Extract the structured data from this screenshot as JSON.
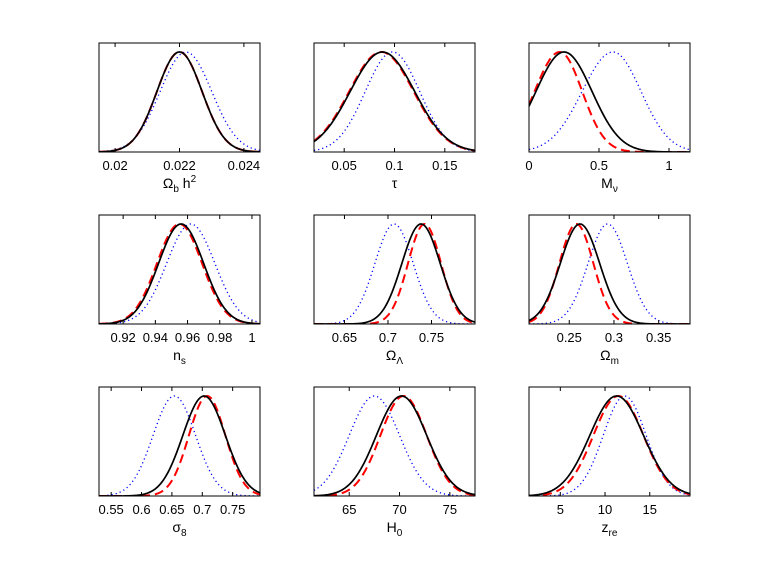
{
  "chart_data": [
    {
      "type": "line",
      "xlabel": {
        "main": "Ω",
        "sub": "b",
        "tail": " h",
        "sup": "2"
      },
      "xlim": [
        0.0195,
        0.0245
      ],
      "ticks": [
        0.02,
        0.022,
        0.024
      ],
      "tick_labels": [
        "0.02",
        "0.022",
        "0.024"
      ],
      "series": [
        {
          "style": "solid-black",
          "peak": 0.022,
          "sigma": 0.0007
        },
        {
          "style": "dashed-red",
          "peak": 0.022,
          "sigma": 0.0007
        },
        {
          "style": "dotted-blue",
          "peak": 0.0222,
          "sigma": 0.0008
        }
      ]
    },
    {
      "type": "line",
      "xlabel": {
        "main": "τ"
      },
      "xlim": [
        0.02,
        0.18
      ],
      "ticks": [
        0.05,
        0.1,
        0.15
      ],
      "tick_labels": [
        "0.05",
        "0.1",
        "0.15"
      ],
      "series": [
        {
          "style": "solid-black",
          "peak": 0.088,
          "sigma": 0.032
        },
        {
          "style": "dashed-red",
          "peak": 0.087,
          "sigma": 0.032
        },
        {
          "style": "dotted-blue",
          "peak": 0.098,
          "sigma": 0.027
        }
      ]
    },
    {
      "type": "line",
      "xlabel": {
        "main": "M",
        "sub": "ν"
      },
      "xlim": [
        0,
        1.15
      ],
      "ticks": [
        0,
        0.5,
        1
      ],
      "tick_labels": [
        "0",
        "0.5",
        "1"
      ],
      "series": [
        {
          "style": "solid-black",
          "peak": 0.25,
          "sigma_left": 0.2,
          "sigma_right": 0.2
        },
        {
          "style": "dashed-red",
          "peak": 0.22,
          "sigma_left": 0.18,
          "sigma_right": 0.16
        },
        {
          "style": "dotted-blue",
          "peak": 0.6,
          "sigma_left": 0.22,
          "sigma_right": 0.2
        }
      ]
    },
    {
      "type": "line",
      "xlabel": {
        "main": "n",
        "sub": "s"
      },
      "xlim": [
        0.905,
        1.005
      ],
      "ticks": [
        0.92,
        0.94,
        0.96,
        0.98,
        1
      ],
      "tick_labels": [
        "0.92",
        "0.94",
        "0.96",
        "0.98",
        "1"
      ],
      "series": [
        {
          "style": "solid-black",
          "peak": 0.956,
          "sigma": 0.014
        },
        {
          "style": "dashed-red",
          "peak": 0.955,
          "sigma": 0.014
        },
        {
          "style": "dotted-blue",
          "peak": 0.962,
          "sigma": 0.015
        }
      ]
    },
    {
      "type": "line",
      "xlabel": {
        "main": "Ω",
        "sub": "Λ"
      },
      "xlim": [
        0.615,
        0.8
      ],
      "ticks": [
        0.65,
        0.7,
        0.75
      ],
      "tick_labels": [
        "0.65",
        "0.7",
        "0.75"
      ],
      "series": [
        {
          "style": "solid-black",
          "peak": 0.738,
          "sigma": 0.022
        },
        {
          "style": "dashed-red",
          "peak": 0.742,
          "sigma": 0.019
        },
        {
          "style": "dotted-blue",
          "peak": 0.707,
          "sigma": 0.022
        }
      ]
    },
    {
      "type": "line",
      "xlabel": {
        "main": "Ω",
        "sub": "m"
      },
      "xlim": [
        0.205,
        0.385
      ],
      "ticks": [
        0.25,
        0.3,
        0.35
      ],
      "tick_labels": [
        "0.25",
        "0.3",
        "0.35"
      ],
      "series": [
        {
          "style": "solid-black",
          "peak": 0.262,
          "sigma": 0.022
        },
        {
          "style": "dashed-red",
          "peak": 0.258,
          "sigma": 0.019
        },
        {
          "style": "dotted-blue",
          "peak": 0.293,
          "sigma": 0.022
        }
      ]
    },
    {
      "type": "line",
      "xlabel": {
        "main": "σ",
        "sub": "8"
      },
      "xlim": [
        0.53,
        0.795
      ],
      "ticks": [
        0.55,
        0.6,
        0.65,
        0.7,
        0.75
      ],
      "tick_labels": [
        "0.55",
        "0.6",
        "0.65",
        "0.7",
        "0.75"
      ],
      "series": [
        {
          "style": "solid-black",
          "peak": 0.703,
          "sigma": 0.035
        },
        {
          "style": "dashed-red",
          "peak": 0.708,
          "sigma": 0.03
        },
        {
          "style": "dotted-blue",
          "peak": 0.654,
          "sigma": 0.035
        }
      ]
    },
    {
      "type": "line",
      "xlabel": {
        "main": "H",
        "sub": "0"
      },
      "xlim": [
        61.5,
        77.5
      ],
      "ticks": [
        65,
        70,
        75
      ],
      "tick_labels": [
        "65",
        "70",
        "75"
      ],
      "series": [
        {
          "style": "solid-black",
          "peak": 70.2,
          "sigma": 2.5
        },
        {
          "style": "dashed-red",
          "peak": 70.4,
          "sigma": 2.3
        },
        {
          "style": "dotted-blue",
          "peak": 67.5,
          "sigma": 2.5
        }
      ]
    },
    {
      "type": "line",
      "xlabel": {
        "main": "z",
        "sub": "re"
      },
      "xlim": [
        1.5,
        19.5
      ],
      "ticks": [
        5,
        10,
        15
      ],
      "tick_labels": [
        "5",
        "10",
        "15"
      ],
      "series": [
        {
          "style": "solid-black",
          "peak": 11.3,
          "sigma": 3.0
        },
        {
          "style": "dashed-red",
          "peak": 11.5,
          "sigma": 2.8
        },
        {
          "style": "dotted-blue",
          "peak": 12.2,
          "sigma": 2.4
        }
      ]
    }
  ],
  "grid": false,
  "yaxis": "unlabeled",
  "colors": {
    "solid": "#000000",
    "dashed": "#ff0000",
    "dotted": "#0000ff",
    "frame": "#000000"
  }
}
